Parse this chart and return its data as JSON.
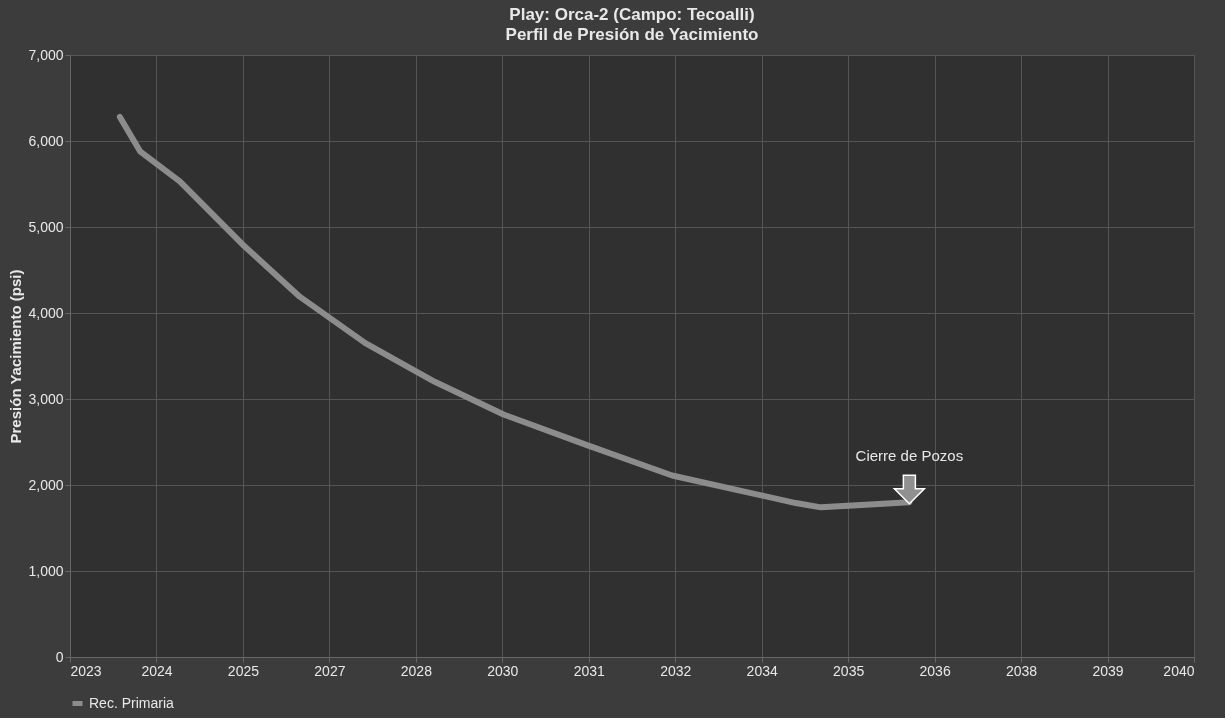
{
  "chart_data": {
    "type": "line",
    "title": "Play: Orca-2 (Campo: Tecoalli)",
    "subtitle": "Perfil de Presión de Yacimiento",
    "ylabel": "Presión Yacimiento (psi)",
    "x": [
      2023.46,
      2023.78,
      2024.41,
      2025.4,
      2026.31,
      2027.35,
      2028.45,
      2029.54,
      2030.84,
      2032.21,
      2034.17,
      2034.57,
      2035.97
    ],
    "series": [
      {
        "name": "Rec. Primaria",
        "color": "#8c8c8c",
        "values": [
          6280,
          5880,
          5530,
          4800,
          4190,
          3650,
          3200,
          2820,
          2470,
          2110,
          1790,
          1740,
          1800
        ]
      }
    ],
    "xlim": [
      2022.67,
      2040.48
    ],
    "xticks": [
      {
        "value": 2022.67,
        "label": "2023"
      },
      {
        "value": 2024.04,
        "label": "2024"
      },
      {
        "value": 2025.41,
        "label": "2025"
      },
      {
        "value": 2026.78,
        "label": "2027"
      },
      {
        "value": 2028.15,
        "label": "2028"
      },
      {
        "value": 2029.52,
        "label": "2030"
      },
      {
        "value": 2030.89,
        "label": "2031"
      },
      {
        "value": 2032.26,
        "label": "2032"
      },
      {
        "value": 2033.63,
        "label": "2034"
      },
      {
        "value": 2035.0,
        "label": "2035"
      },
      {
        "value": 2036.37,
        "label": "2036"
      },
      {
        "value": 2037.74,
        "label": "2038"
      },
      {
        "value": 2039.11,
        "label": "2039"
      },
      {
        "value": 2040.48,
        "label": "2040"
      }
    ],
    "ylim": [
      0,
      7000
    ],
    "yticks": [
      {
        "value": 0,
        "label": "0"
      },
      {
        "value": 1000,
        "label": "1,000"
      },
      {
        "value": 2000,
        "label": "2,000"
      },
      {
        "value": 3000,
        "label": "3,000"
      },
      {
        "value": 4000,
        "label": "4,000"
      },
      {
        "value": 5000,
        "label": "5,000"
      },
      {
        "value": 6000,
        "label": "6,000"
      },
      {
        "value": 7000,
        "label": "7,000"
      }
    ],
    "annotations": [
      {
        "text": "Cierre de Pozos",
        "x": 2035.97,
        "y": 1800
      }
    ],
    "grid": true,
    "legend": "bottom",
    "marker": "none",
    "line_style": "solid"
  }
}
